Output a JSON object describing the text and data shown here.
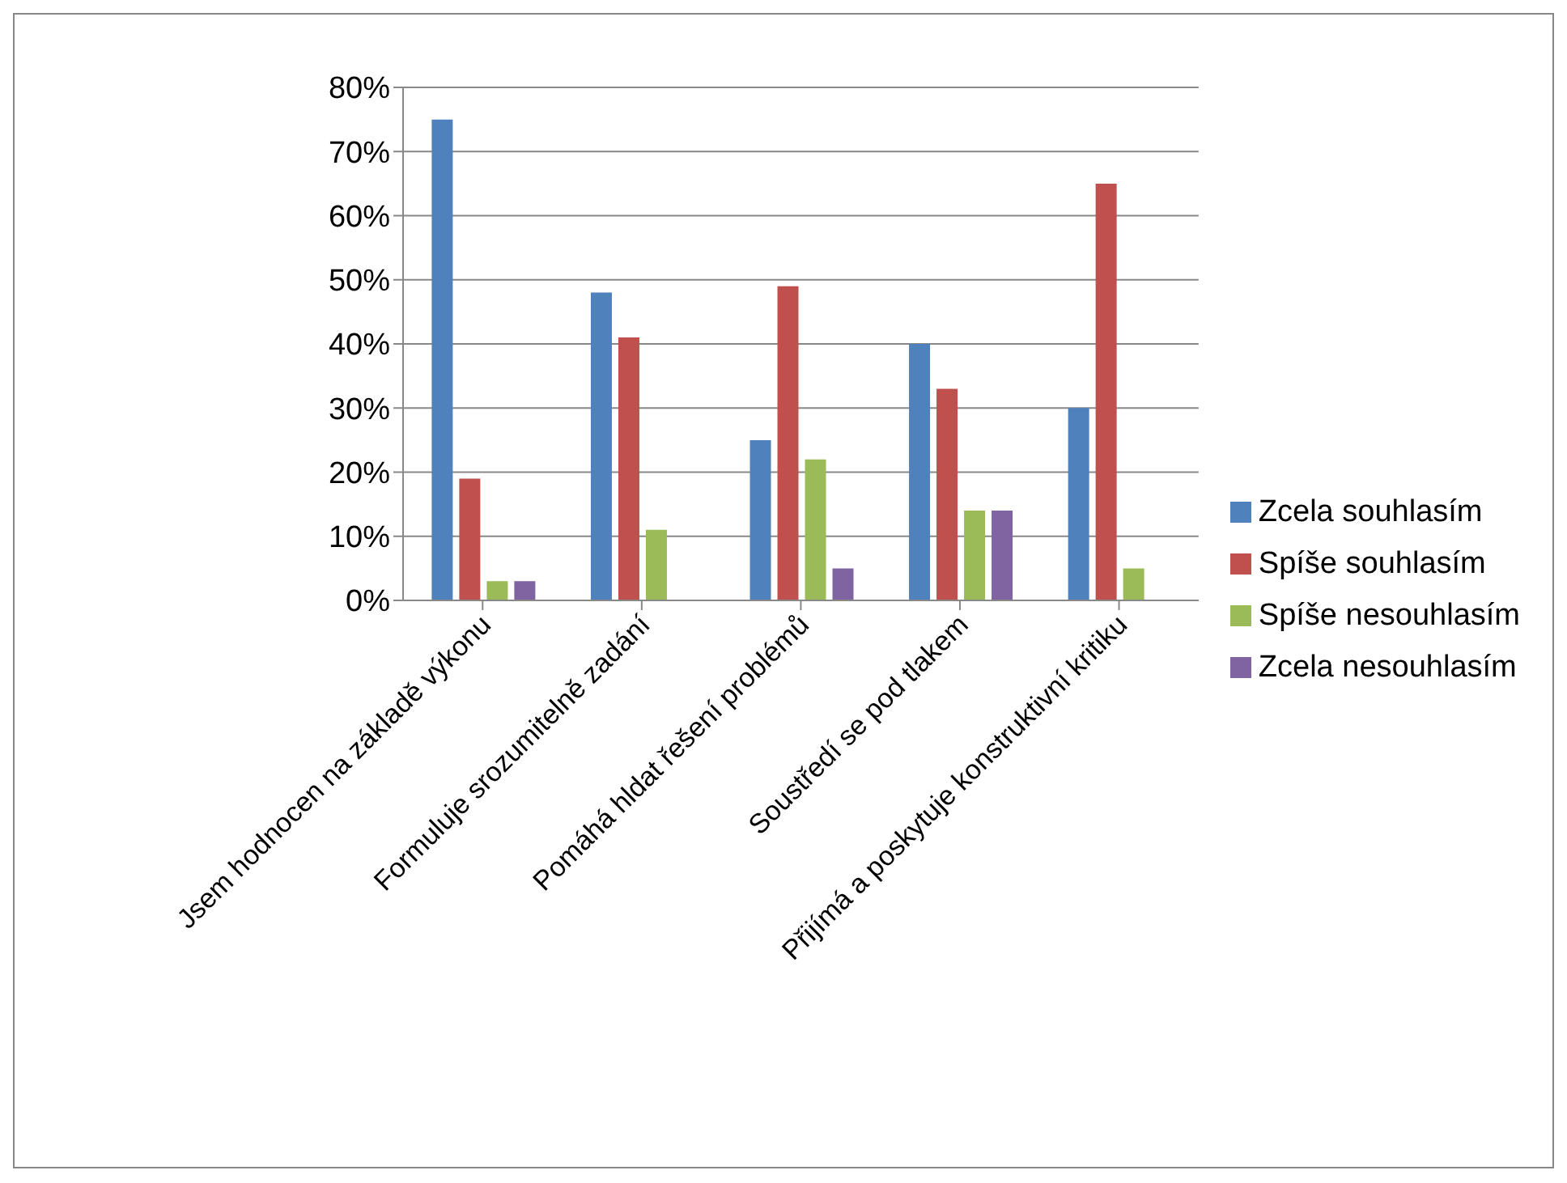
{
  "chart_data": {
    "type": "bar",
    "categories": [
      "Jsem hodnocen na základě výkonu",
      "Formuluje srozumitelně zadání",
      "Pomáhá hldat řešení problémů",
      "Soustředí se pod tlakem",
      "Přijímá a poskytuje konstruktivní kritiku"
    ],
    "series": [
      {
        "name": "Zcela souhlasím",
        "color": "#4f81bd",
        "values": [
          75,
          48,
          25,
          40,
          30
        ]
      },
      {
        "name": "Spíše souhlasím",
        "color": "#c0504d",
        "values": [
          19,
          41,
          49,
          33,
          65
        ]
      },
      {
        "name": "Spíše nesouhlasím",
        "color": "#9bbb59",
        "values": [
          3,
          11,
          22,
          14,
          5
        ]
      },
      {
        "name": "Zcela nesouhlasím",
        "color": "#8064a2",
        "values": [
          3,
          0,
          5,
          14,
          0
        ]
      }
    ],
    "ylim": [
      0,
      80
    ],
    "yticks": [
      {
        "value": 0,
        "label": "0%"
      },
      {
        "value": 10,
        "label": "10%"
      },
      {
        "value": 20,
        "label": "20%"
      },
      {
        "value": 30,
        "label": "30%"
      },
      {
        "value": 40,
        "label": "40%"
      },
      {
        "value": 50,
        "label": "50%"
      },
      {
        "value": 60,
        "label": "60%"
      },
      {
        "value": 70,
        "label": "70%"
      },
      {
        "value": 80,
        "label": "80%"
      }
    ],
    "grid": "y",
    "legend": "right"
  }
}
